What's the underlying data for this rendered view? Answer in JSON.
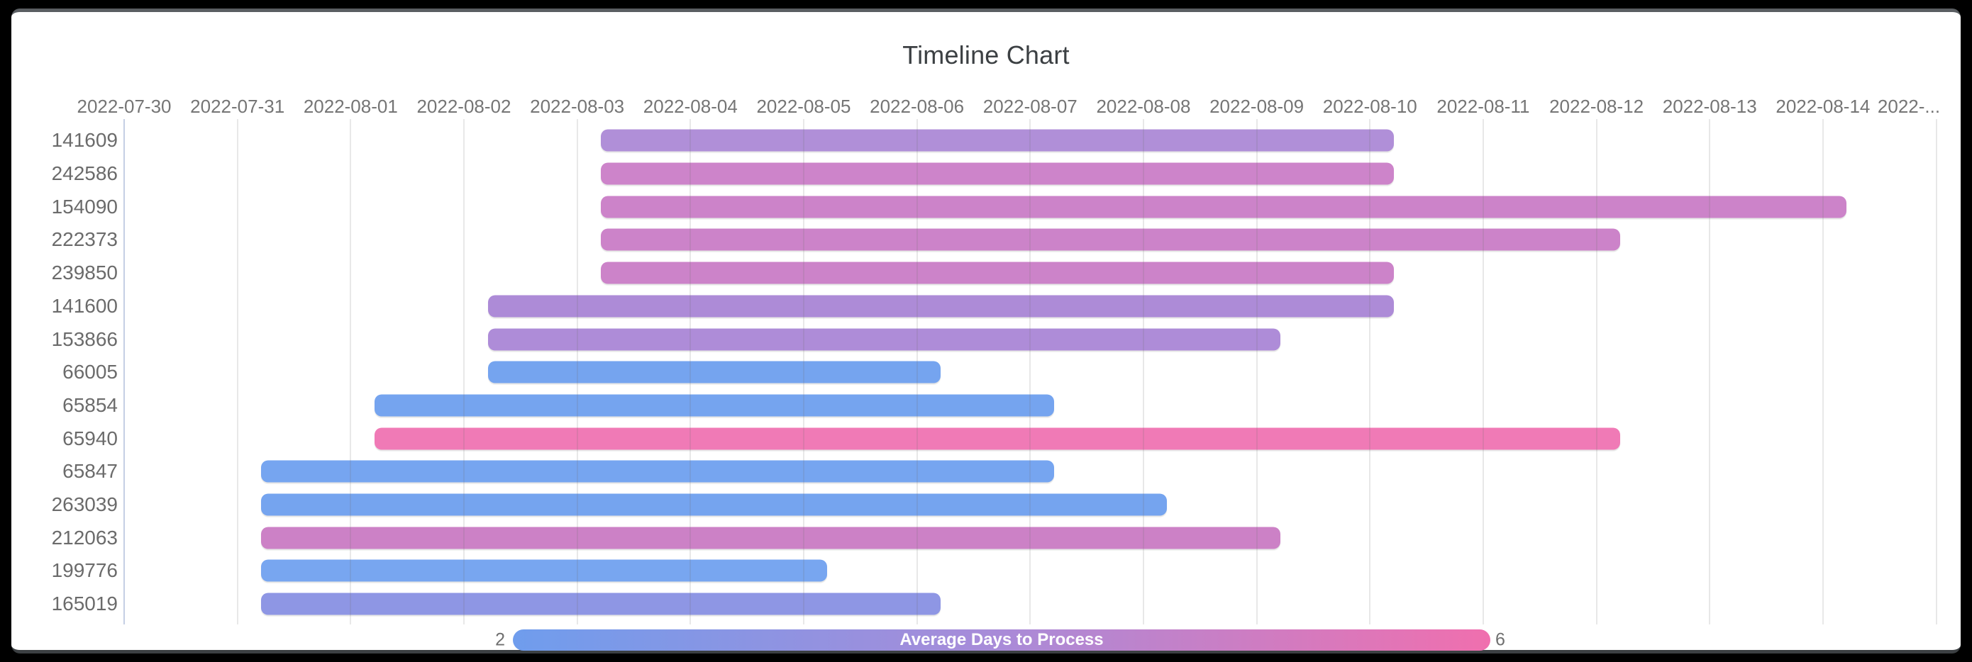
{
  "page": {
    "title": "Timeline Chart"
  },
  "legend": {
    "title": "Average Days to Process",
    "min_label": "2",
    "max_label": "6"
  },
  "chart_data": {
    "type": "bar",
    "subtype": "horizontal-timeline-gantt",
    "title": "Timeline Chart",
    "xlabel": "",
    "ylabel": "",
    "grid": true,
    "x_axis": {
      "start_date": "2022-07-30",
      "end_date_visible": "2022-08-15",
      "tick_labels": [
        "2022-07-30",
        "2022-07-31",
        "2022-08-01",
        "2022-08-02",
        "2022-08-03",
        "2022-08-04",
        "2022-08-05",
        "2022-08-06",
        "2022-08-07",
        "2022-08-08",
        "2022-08-09",
        "2022-08-10",
        "2022-08-11",
        "2022-08-12",
        "2022-08-13",
        "2022-08-14",
        "2022-..."
      ]
    },
    "categories": [
      "141609",
      "242586",
      "154090",
      "222373",
      "239850",
      "141600",
      "153866",
      "66005",
      "65854",
      "65940",
      "65847",
      "263039",
      "212063",
      "199776",
      "165019"
    ],
    "tasks": [
      {
        "id": "141609",
        "start": "2022-08-03",
        "end": "2022-08-10",
        "duration_days": 7,
        "color": "#b08fd8"
      },
      {
        "id": "242586",
        "start": "2022-08-03",
        "end": "2022-08-10",
        "duration_days": 7,
        "color": "#cd84ca"
      },
      {
        "id": "154090",
        "start": "2022-08-03",
        "end": "2022-08-14",
        "duration_days": 11,
        "color": "#cc83c9"
      },
      {
        "id": "222373",
        "start": "2022-08-03",
        "end": "2022-08-12",
        "duration_days": 9,
        "color": "#cc83c9"
      },
      {
        "id": "239850",
        "start": "2022-08-03",
        "end": "2022-08-10",
        "duration_days": 7,
        "color": "#cc83c9"
      },
      {
        "id": "141600",
        "start": "2022-08-02",
        "end": "2022-08-10",
        "duration_days": 8,
        "color": "#ad8bd7"
      },
      {
        "id": "153866",
        "start": "2022-08-02",
        "end": "2022-08-09",
        "duration_days": 7,
        "color": "#ae8cd8"
      },
      {
        "id": "66005",
        "start": "2022-08-02",
        "end": "2022-08-06",
        "duration_days": 4,
        "color": "#75a4ef"
      },
      {
        "id": "65854",
        "start": "2022-08-01",
        "end": "2022-08-07",
        "duration_days": 6,
        "color": "#75a4ef"
      },
      {
        "id": "65940",
        "start": "2022-08-01",
        "end": "2022-08-12",
        "duration_days": 11,
        "color": "#f07ab6"
      },
      {
        "id": "65847",
        "start": "2022-07-31",
        "end": "2022-08-07",
        "duration_days": 7,
        "color": "#76a5f0"
      },
      {
        "id": "263039",
        "start": "2022-07-31",
        "end": "2022-08-08",
        "duration_days": 8,
        "color": "#75a4ef"
      },
      {
        "id": "212063",
        "start": "2022-07-31",
        "end": "2022-08-09",
        "duration_days": 9,
        "color": "#cc81c6"
      },
      {
        "id": "199776",
        "start": "2022-07-31",
        "end": "2022-08-05",
        "duration_days": 5,
        "color": "#78a6f0"
      },
      {
        "id": "165019",
        "start": "2022-07-31",
        "end": "2022-08-06",
        "duration_days": 6,
        "color": "#8e96e4"
      }
    ],
    "color_scale": {
      "label": "Average Days to Process",
      "min": 2,
      "max": 6,
      "min_color": "#6f9ded",
      "mid_color": "#a98bd8",
      "max_color": "#f06fae",
      "legend_position": "bottom"
    }
  }
}
